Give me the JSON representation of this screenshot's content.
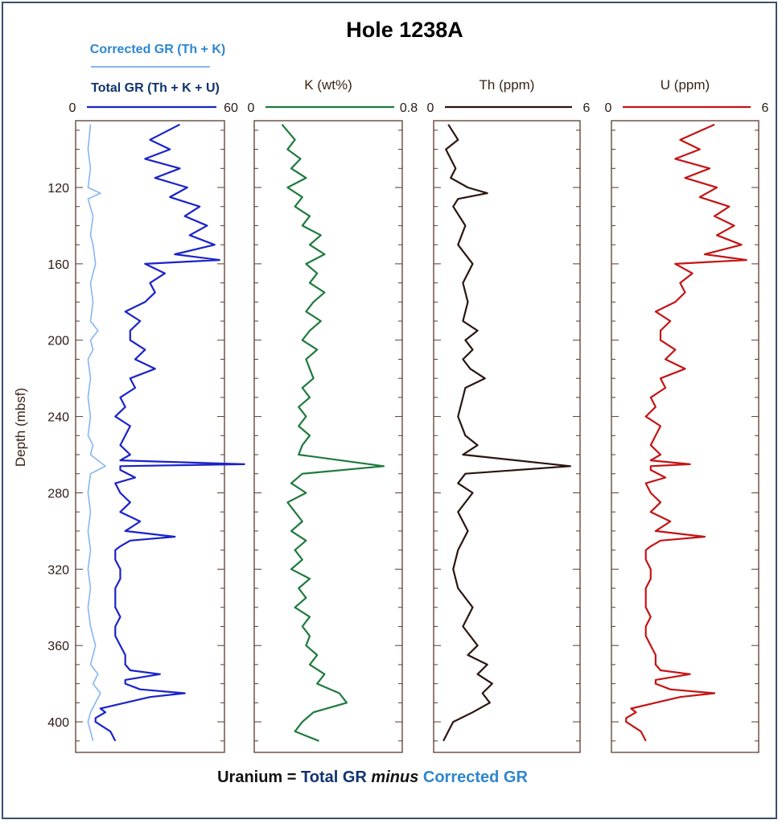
{
  "chart_data": {
    "type": "line",
    "title": "Hole 1238A",
    "ylabel": "Depth (mbsf)",
    "ylim": [
      416,
      85
    ],
    "y_ticks": [
      "120",
      "160",
      "200",
      "240",
      "280",
      "320",
      "360",
      "400"
    ],
    "footer": {
      "part1": "Uranium  =  ",
      "part2": "Total GR ",
      "part3": "minus ",
      "part4": "Corrected GR"
    },
    "legend": {
      "corrected": "Corrected GR (Th + K)",
      "total": "Total GR (Th + K + U)"
    },
    "colors": {
      "total_gr": "#1a23c8",
      "corrected_gr": "#86b5f5",
      "k": "#1f7a3d",
      "th": "#2b1510",
      "u": "#c41414",
      "axis": "#5a3a2c"
    },
    "tracks": [
      {
        "label": "",
        "xmin_label": "0",
        "xmax_label": "60",
        "xlim": [
          0,
          60
        ],
        "series": [
          {
            "name": "Total GR (Th + K + U)",
            "color": "#1a23c8",
            "depth": [
              87,
              95,
              100,
              105,
              110,
              115,
              120,
              125,
              130,
              135,
              140,
              145,
              150,
              155,
              158,
              160,
              165,
              170,
              175,
              180,
              185,
              190,
              195,
              200,
              205,
              210,
              215,
              220,
              225,
              230,
              235,
              240,
              245,
              250,
              255,
              260,
              263,
              265,
              266,
              268,
              272,
              275,
              280,
              285,
              290,
              295,
              300,
              303,
              305,
              308,
              310,
              315,
              320,
              325,
              330,
              335,
              340,
              345,
              350,
              355,
              360,
              365,
              370,
              373,
              375,
              378,
              380,
              383,
              385,
              387,
              390,
              393,
              395,
              398,
              400,
              405,
              410
            ],
            "values": [
              42,
              30,
              38,
              28,
              42,
              32,
              45,
              38,
              50,
              44,
              53,
              46,
              56,
              40,
              58,
              28,
              36,
              30,
              32,
              28,
              20,
              26,
              22,
              22,
              28,
              24,
              32,
              22,
              24,
              18,
              20,
              16,
              22,
              20,
              18,
              22,
              18,
              68,
              18,
              18,
              24,
              16,
              18,
              22,
              18,
              26,
              20,
              40,
              22,
              18,
              16,
              16,
              18,
              18,
              16,
              16,
              16,
              18,
              16,
              16,
              18,
              20,
              20,
              22,
              34,
              20,
              20,
              26,
              44,
              30,
              20,
              10,
              12,
              8,
              8,
              14,
              16
            ]
          },
          {
            "name": "Corrected GR (Th + K)",
            "color": "#86b5f5",
            "depth": [
              87,
              100,
              110,
              120,
              123,
              126,
              135,
              145,
              150,
              160,
              170,
              180,
              190,
              195,
              200,
              205,
              210,
              220,
              230,
              240,
              250,
              255,
              260,
              266,
              270,
              280,
              290,
              300,
              310,
              320,
              330,
              340,
              350,
              360,
              370,
              375,
              380,
              385,
              390,
              395,
              400,
              405,
              410
            ],
            "values": [
              6,
              5,
              6,
              5,
              10,
              5,
              7,
              6,
              7,
              8,
              6,
              7,
              6,
              9,
              6,
              7,
              5,
              6,
              5,
              6,
              5,
              7,
              6,
              12,
              6,
              5,
              6,
              5,
              6,
              5,
              6,
              5,
              6,
              8,
              6,
              9,
              7,
              10,
              8,
              6,
              5,
              6,
              7
            ]
          }
        ]
      },
      {
        "label": "K (wt%)",
        "xmin_label": "0",
        "xmax_label": "0.8",
        "xlim": [
          0,
          0.8
        ],
        "series": [
          {
            "name": "K (wt%)",
            "color": "#1f7a3d",
            "depth": [
              87,
              95,
              100,
              105,
              110,
              115,
              120,
              125,
              130,
              135,
              140,
              145,
              150,
              155,
              160,
              165,
              170,
              175,
              180,
              185,
              190,
              195,
              200,
              205,
              210,
              215,
              220,
              225,
              230,
              235,
              240,
              245,
              250,
              255,
              260,
              266,
              270,
              275,
              280,
              285,
              290,
              295,
              300,
              305,
              310,
              315,
              320,
              325,
              330,
              335,
              340,
              345,
              350,
              355,
              360,
              365,
              370,
              375,
              380,
              385,
              390,
              395,
              400,
              405,
              410
            ],
            "values": [
              0.15,
              0.22,
              0.18,
              0.25,
              0.2,
              0.28,
              0.18,
              0.26,
              0.22,
              0.3,
              0.26,
              0.36,
              0.3,
              0.38,
              0.28,
              0.34,
              0.3,
              0.38,
              0.32,
              0.28,
              0.36,
              0.3,
              0.26,
              0.34,
              0.28,
              0.3,
              0.32,
              0.26,
              0.3,
              0.24,
              0.28,
              0.24,
              0.3,
              0.26,
              0.24,
              0.7,
              0.26,
              0.2,
              0.28,
              0.18,
              0.22,
              0.26,
              0.2,
              0.28,
              0.22,
              0.26,
              0.2,
              0.3,
              0.24,
              0.28,
              0.22,
              0.3,
              0.26,
              0.3,
              0.28,
              0.34,
              0.3,
              0.38,
              0.34,
              0.46,
              0.5,
              0.32,
              0.26,
              0.22,
              0.35
            ]
          }
        ]
      },
      {
        "label": "Th (ppm)",
        "xmin_label": "0",
        "xmax_label": "6",
        "xlim": [
          0,
          6
        ],
        "series": [
          {
            "name": "Th (ppm)",
            "color": "#2b1510",
            "depth": [
              87,
              95,
              100,
              110,
              115,
              120,
              123,
              126,
              130,
              140,
              150,
              160,
              170,
              180,
              190,
              195,
              200,
              205,
              210,
              215,
              220,
              225,
              230,
              240,
              250,
              255,
              260,
              266,
              270,
              275,
              280,
              290,
              300,
              310,
              320,
              330,
              340,
              350,
              360,
              365,
              370,
              375,
              380,
              385,
              390,
              395,
              400,
              405,
              410
            ],
            "values": [
              0.6,
              1.0,
              0.5,
              0.9,
              0.7,
              1.4,
              2.2,
              1.0,
              0.8,
              1.3,
              1.0,
              1.6,
              1.2,
              1.4,
              1.2,
              1.8,
              1.3,
              1.6,
              1.2,
              1.5,
              2.1,
              1.3,
              1.2,
              1.0,
              1.3,
              1.8,
              1.2,
              5.6,
              1.3,
              1.0,
              1.6,
              1.0,
              1.4,
              1.0,
              0.8,
              1.0,
              1.6,
              1.2,
              1.8,
              1.4,
              2.2,
              1.8,
              2.4,
              2.0,
              2.3,
              1.6,
              0.8,
              0.6,
              0.4
            ]
          }
        ]
      },
      {
        "label": "U (ppm)",
        "xmin_label": "0",
        "xmax_label": "6",
        "xlim": [
          0,
          6
        ],
        "series": [
          {
            "name": "U (ppm)",
            "color": "#c41414",
            "depth": [
              87,
              95,
              100,
              105,
              110,
              115,
              120,
              125,
              130,
              135,
              140,
              145,
              150,
              155,
              158,
              160,
              165,
              170,
              175,
              180,
              185,
              190,
              195,
              200,
              205,
              210,
              215,
              220,
              225,
              230,
              235,
              240,
              245,
              250,
              255,
              260,
              263,
              265,
              266,
              268,
              272,
              275,
              280,
              285,
              290,
              295,
              300,
              303,
              305,
              308,
              310,
              315,
              320,
              325,
              330,
              335,
              340,
              345,
              350,
              355,
              360,
              365,
              370,
              373,
              375,
              378,
              380,
              383,
              385,
              387,
              390,
              393,
              395,
              398,
              400,
              405,
              410
            ],
            "values": [
              4.2,
              2.8,
              3.6,
              2.6,
              4.0,
              3.0,
              4.3,
              3.6,
              4.8,
              4.2,
              5.0,
              4.3,
              5.3,
              3.8,
              5.5,
              2.6,
              3.3,
              2.8,
              3.0,
              2.6,
              1.8,
              2.4,
              2.0,
              2.0,
              2.6,
              2.2,
              3.0,
              2.0,
              2.2,
              1.6,
              1.8,
              1.4,
              2.0,
              1.8,
              1.6,
              2.0,
              1.6,
              3.2,
              1.6,
              1.6,
              2.2,
              1.4,
              1.6,
              2.0,
              1.6,
              2.4,
              1.8,
              3.8,
              2.0,
              1.6,
              1.4,
              1.4,
              1.6,
              1.6,
              1.4,
              1.4,
              1.4,
              1.6,
              1.4,
              1.4,
              1.6,
              1.8,
              1.8,
              2.0,
              3.2,
              1.8,
              1.8,
              2.4,
              4.2,
              2.8,
              1.8,
              0.8,
              1.0,
              0.6,
              0.6,
              1.2,
              1.4
            ]
          }
        ]
      }
    ]
  }
}
